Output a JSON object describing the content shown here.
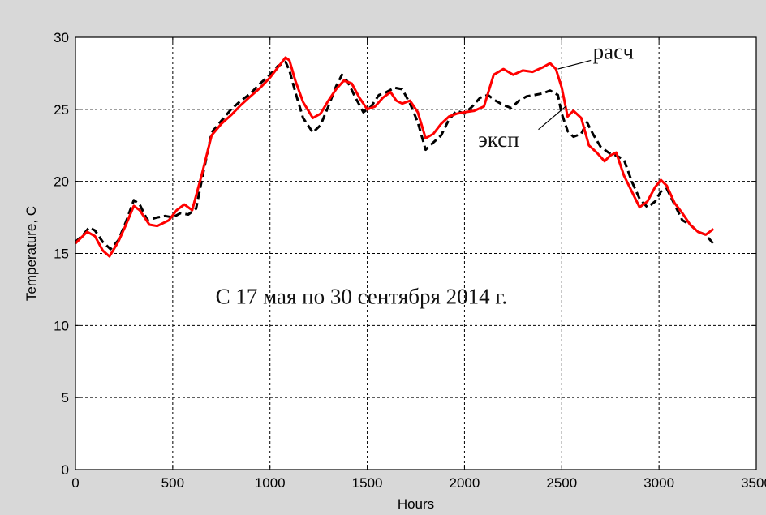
{
  "chart_data": {
    "type": "line",
    "title": "",
    "xlabel": "Hours",
    "ylabel": "Temperature, C",
    "xlim": [
      0,
      3500
    ],
    "ylim": [
      0,
      30
    ],
    "xticks": [
      0,
      500,
      1000,
      1500,
      2000,
      2500,
      3000,
      3500
    ],
    "yticks": [
      0,
      5,
      10,
      15,
      20,
      25,
      30
    ],
    "grid": true,
    "annotation": "С 17 мая по 30 сентября 2014 г.",
    "series": [
      {
        "name": "расч",
        "color": "#ff0000",
        "style": "solid",
        "x": [
          0,
          60,
          100,
          140,
          175,
          220,
          260,
          300,
          330,
          380,
          420,
          480,
          520,
          560,
          600,
          650,
          700,
          750,
          800,
          850,
          900,
          950,
          1000,
          1040,
          1080,
          1100,
          1130,
          1170,
          1220,
          1260,
          1300,
          1340,
          1380,
          1420,
          1460,
          1500,
          1540,
          1580,
          1620,
          1650,
          1680,
          1720,
          1760,
          1800,
          1840,
          1880,
          1920,
          1960,
          2000,
          2050,
          2100,
          2150,
          2200,
          2250,
          2300,
          2350,
          2400,
          2440,
          2470,
          2500,
          2530,
          2560,
          2600,
          2640,
          2680,
          2720,
          2750,
          2780,
          2820,
          2860,
          2900,
          2940,
          2980,
          3010,
          3040,
          3080,
          3120,
          3160,
          3200,
          3240,
          3280
        ],
        "y": [
          15.7,
          16.5,
          16.2,
          15.2,
          14.8,
          15.8,
          17.0,
          18.3,
          18.0,
          17.0,
          16.9,
          17.3,
          18.0,
          18.4,
          18.0,
          20.5,
          23.2,
          24.0,
          24.6,
          25.3,
          25.9,
          26.5,
          27.2,
          27.9,
          28.6,
          28.4,
          27.0,
          25.5,
          24.4,
          24.7,
          25.6,
          26.4,
          27.0,
          26.8,
          25.8,
          25.0,
          25.2,
          25.8,
          26.2,
          25.6,
          25.4,
          25.6,
          24.8,
          23.0,
          23.3,
          24.0,
          24.5,
          24.7,
          24.8,
          24.9,
          25.2,
          27.4,
          27.8,
          27.4,
          27.7,
          27.6,
          27.9,
          28.2,
          27.8,
          26.5,
          24.5,
          24.9,
          24.4,
          22.5,
          22.0,
          21.4,
          21.8,
          22.0,
          20.4,
          19.3,
          18.2,
          18.6,
          19.6,
          20.1,
          19.7,
          18.5,
          17.8,
          17.0,
          16.5,
          16.3,
          16.7
        ]
      },
      {
        "name": "эксп",
        "color": "#000000",
        "style": "dashed",
        "x": [
          0,
          40,
          70,
          100,
          140,
          180,
          220,
          260,
          300,
          330,
          370,
          420,
          460,
          500,
          540,
          580,
          620,
          660,
          700,
          750,
          800,
          850,
          900,
          950,
          1000,
          1040,
          1080,
          1100,
          1130,
          1170,
          1220,
          1260,
          1300,
          1340,
          1370,
          1400,
          1440,
          1480,
          1520,
          1560,
          1600,
          1640,
          1680,
          1720,
          1760,
          1800,
          1840,
          1880,
          1920,
          1960,
          2000,
          2040,
          2080,
          2120,
          2160,
          2200,
          2240,
          2280,
          2320,
          2360,
          2400,
          2440,
          2480,
          2500,
          2530,
          2560,
          2600,
          2630,
          2660,
          2700,
          2740,
          2780,
          2820,
          2860,
          2900,
          2940,
          2980,
          3010,
          3040,
          3080,
          3120,
          3160,
          3200,
          3240,
          3290
        ],
        "y": [
          15.8,
          16.3,
          16.8,
          16.6,
          15.8,
          15.3,
          15.9,
          17.2,
          18.7,
          18.4,
          17.3,
          17.5,
          17.6,
          17.5,
          17.8,
          17.7,
          18.1,
          20.8,
          23.4,
          24.2,
          25.0,
          25.6,
          26.1,
          26.8,
          27.4,
          28.0,
          28.3,
          27.7,
          26.2,
          24.4,
          23.4,
          23.9,
          25.2,
          26.6,
          27.4,
          26.9,
          25.8,
          24.8,
          25.2,
          26.0,
          26.2,
          26.5,
          26.4,
          25.4,
          24.1,
          22.2,
          22.7,
          23.2,
          24.3,
          24.9,
          24.7,
          25.2,
          25.8,
          26.0,
          25.6,
          25.3,
          25.1,
          25.6,
          25.9,
          26.0,
          26.1,
          26.3,
          26.0,
          24.7,
          23.5,
          23.1,
          23.3,
          24.1,
          23.3,
          22.4,
          22.0,
          21.8,
          21.5,
          20.0,
          18.8,
          18.2,
          18.6,
          19.3,
          19.5,
          18.4,
          17.3,
          17.0,
          16.5,
          16.3,
          15.5
        ]
      }
    ]
  }
}
